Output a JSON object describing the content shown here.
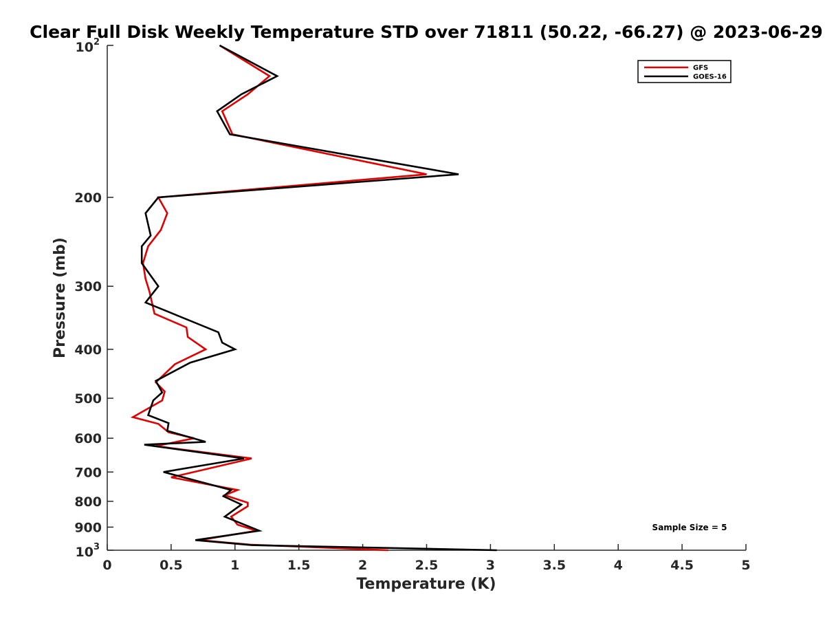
{
  "chart_data": {
    "type": "line",
    "title": "Clear Full Disk Weekly Temperature STD over 71811 (50.22, -66.27) @ 2023-06-29",
    "xlabel": "Temperature (K)",
    "ylabel": "Pressure (mb)",
    "xlim": [
      0,
      5
    ],
    "ylim": [
      100,
      1000
    ],
    "y_scale": "log",
    "y_reversed": true,
    "x_ticks": [
      0,
      0.5,
      1,
      1.5,
      2,
      2.5,
      3,
      3.5,
      4,
      4.5,
      5
    ],
    "x_tick_labels": [
      "0",
      "0.5",
      "1",
      "1.5",
      "2",
      "2.5",
      "3",
      "3.5",
      "4",
      "4.5",
      "5"
    ],
    "y_ticks": [
      {
        "value": 100,
        "base": "10",
        "exp": "2"
      },
      {
        "value": 200,
        "label": "200"
      },
      {
        "value": 300,
        "label": "300"
      },
      {
        "value": 400,
        "label": "400"
      },
      {
        "value": 500,
        "label": "500"
      },
      {
        "value": 600,
        "label": "600"
      },
      {
        "value": 700,
        "label": "700"
      },
      {
        "value": 800,
        "label": "800"
      },
      {
        "value": 900,
        "label": "900"
      },
      {
        "value": 1000,
        "base": "10",
        "exp": "3"
      }
    ],
    "grid": false,
    "legend_position": "top-right",
    "annotation": "Sample Size = 5",
    "series": [
      {
        "name": "GFS",
        "color": "#e00000",
        "points": [
          [
            0.88,
            100
          ],
          [
            1.27,
            115
          ],
          [
            1.1,
            125
          ],
          [
            0.9,
            135
          ],
          [
            0.98,
            150
          ],
          [
            2.5,
            180
          ],
          [
            0.4,
            200
          ],
          [
            0.47,
            215
          ],
          [
            0.42,
            232
          ],
          [
            0.32,
            250
          ],
          [
            0.28,
            270
          ],
          [
            0.3,
            290
          ],
          [
            0.33,
            307
          ],
          [
            0.37,
            340
          ],
          [
            0.62,
            362
          ],
          [
            0.63,
            378
          ],
          [
            0.77,
            400
          ],
          [
            0.53,
            428
          ],
          [
            0.38,
            465
          ],
          [
            0.45,
            485
          ],
          [
            0.43,
            505
          ],
          [
            0.2,
            545
          ],
          [
            0.4,
            562
          ],
          [
            0.48,
            584
          ],
          [
            0.68,
            600
          ],
          [
            0.38,
            622
          ],
          [
            1.13,
            658
          ],
          [
            0.5,
            717
          ],
          [
            1.02,
            760
          ],
          [
            0.92,
            778
          ],
          [
            1.1,
            805
          ],
          [
            1.1,
            818
          ],
          [
            0.97,
            858
          ],
          [
            1.02,
            890
          ],
          [
            1.17,
            915
          ],
          [
            0.72,
            955
          ],
          [
            1.12,
            975
          ],
          [
            2.2,
            1000
          ]
        ]
      },
      {
        "name": "GOES-16",
        "color": "#000000",
        "points": [
          [
            0.88,
            100
          ],
          [
            1.33,
            115
          ],
          [
            1.05,
            125
          ],
          [
            0.86,
            135
          ],
          [
            0.96,
            150
          ],
          [
            2.75,
            180
          ],
          [
            0.4,
            200
          ],
          [
            0.3,
            215
          ],
          [
            0.34,
            238
          ],
          [
            0.27,
            250
          ],
          [
            0.27,
            270
          ],
          [
            0.4,
            300
          ],
          [
            0.3,
            323
          ],
          [
            0.87,
            370
          ],
          [
            0.9,
            388
          ],
          [
            1.0,
            400
          ],
          [
            0.65,
            425
          ],
          [
            0.38,
            462
          ],
          [
            0.43,
            487
          ],
          [
            0.36,
            505
          ],
          [
            0.32,
            540
          ],
          [
            0.48,
            560
          ],
          [
            0.47,
            580
          ],
          [
            0.77,
            610
          ],
          [
            0.29,
            618
          ],
          [
            1.07,
            658
          ],
          [
            0.44,
            700
          ],
          [
            0.97,
            760
          ],
          [
            0.91,
            782
          ],
          [
            1.05,
            812
          ],
          [
            0.92,
            858
          ],
          [
            1.19,
            915
          ],
          [
            0.69,
            955
          ],
          [
            1.13,
            977
          ],
          [
            3.05,
            1000
          ]
        ]
      }
    ]
  }
}
